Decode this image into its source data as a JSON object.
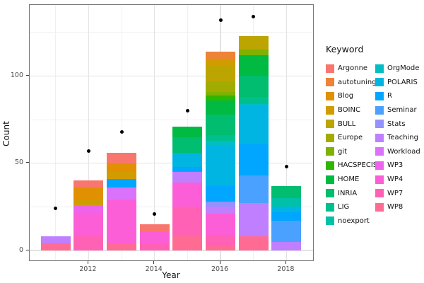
{
  "axes": {
    "x_label": "Year",
    "y_label": "Count",
    "x_ticks": [
      "2012",
      "2014",
      "2016",
      "2018"
    ],
    "y_ticks": [
      "0",
      "50",
      "100"
    ]
  },
  "legend": {
    "title": "Keyword"
  },
  "chart_data": {
    "type": "bar",
    "stacked": true,
    "title": "",
    "xlabel": "Year",
    "ylabel": "Count",
    "x": [
      2011,
      2012,
      2013,
      2014,
      2015,
      2016,
      2017,
      2018
    ],
    "x_tick_values": [
      2012,
      2014,
      2016,
      2018
    ],
    "y_tick_values": [
      0,
      50,
      100
    ],
    "y_minor_gridlines": [
      25,
      75,
      125
    ],
    "x_minor_gridlines": [
      2011,
      2013,
      2015,
      2017
    ],
    "ylim": [
      0,
      141
    ],
    "grid": true,
    "legend_title": "Keyword",
    "legend_position": "right",
    "stack_order_note": "first series drawn at top of stack, last at bottom",
    "series": [
      {
        "name": "Argonne",
        "color": "#F8766D",
        "values": [
          0,
          4,
          6,
          4,
          0,
          0,
          0,
          0
        ]
      },
      {
        "name": "autotuning",
        "color": "#EE8337",
        "values": [
          0,
          0,
          0,
          0,
          0,
          4,
          0,
          0
        ]
      },
      {
        "name": "Blog",
        "color": "#E09000",
        "values": [
          0,
          7,
          5,
          0,
          0,
          0,
          0,
          0
        ]
      },
      {
        "name": "BOINC",
        "color": "#D19C00",
        "values": [
          0,
          3,
          4,
          0,
          0,
          4,
          0,
          0
        ]
      },
      {
        "name": "BULL",
        "color": "#BCA500",
        "values": [
          0,
          0,
          0,
          0,
          0,
          9,
          8,
          0
        ]
      },
      {
        "name": "Europe",
        "color": "#A2AC00",
        "values": [
          0,
          0,
          0,
          0,
          0,
          6,
          0,
          0
        ]
      },
      {
        "name": "git",
        "color": "#7FB200",
        "values": [
          0,
          0,
          0,
          0,
          0,
          2,
          3,
          0
        ]
      },
      {
        "name": "HACSPECIS",
        "color": "#2FB600",
        "values": [
          0,
          0,
          0,
          0,
          0,
          3,
          0,
          0
        ]
      },
      {
        "name": "HOME",
        "color": "#00BA42",
        "values": [
          0,
          0,
          0,
          0,
          6,
          8,
          12,
          0
        ]
      },
      {
        "name": "INRIA",
        "color": "#00BD6F",
        "values": [
          0,
          0,
          0,
          0,
          9,
          12,
          12,
          7
        ]
      },
      {
        "name": "LIG",
        "color": "#00BF8F",
        "values": [
          0,
          0,
          0,
          0,
          0,
          3,
          4,
          0
        ]
      },
      {
        "name": "noexport",
        "color": "#00C0A8",
        "values": [
          0,
          0,
          0,
          0,
          0,
          0,
          0,
          5
        ]
      },
      {
        "name": "OrgMode",
        "color": "#00BEC4",
        "values": [
          0,
          0,
          0,
          0,
          0,
          3,
          1,
          0
        ]
      },
      {
        "name": "POLARIS",
        "color": "#00B5E2",
        "values": [
          0,
          0,
          0,
          0,
          8,
          23,
          22,
          3
        ]
      },
      {
        "name": "R",
        "color": "#00A6FF",
        "values": [
          0,
          0,
          5,
          0,
          3,
          9,
          18,
          5
        ]
      },
      {
        "name": "Seminar",
        "color": "#4BA1FF",
        "values": [
          0,
          0,
          0,
          0,
          0,
          0,
          16,
          12
        ]
      },
      {
        "name": "Stats",
        "color": "#9492FF",
        "values": [
          0,
          0,
          0,
          0,
          0,
          3,
          0,
          0
        ]
      },
      {
        "name": "Teaching",
        "color": "#BF7FFF",
        "values": [
          4,
          0,
          0,
          0,
          6,
          4,
          19,
          5
        ]
      },
      {
        "name": "Workload",
        "color": "#DB72FC",
        "values": [
          0,
          0,
          7,
          0,
          0,
          0,
          0,
          0
        ]
      },
      {
        "name": "WP3",
        "color": "#EF63EC",
        "values": [
          0,
          5,
          0,
          0,
          0,
          0,
          0,
          0
        ]
      },
      {
        "name": "WP4",
        "color": "#FC5ED8",
        "values": [
          0,
          13,
          25,
          7,
          14,
          12,
          0,
          0
        ]
      },
      {
        "name": "WP7",
        "color": "#FF61B4",
        "values": [
          0,
          8,
          0,
          4,
          17,
          6,
          0,
          0
        ]
      },
      {
        "name": "WP8",
        "color": "#FF6B92",
        "values": [
          4,
          0,
          4,
          0,
          8,
          3,
          8,
          0
        ]
      }
    ],
    "points_overlay": {
      "name": "totals-dots",
      "color": "#000000",
      "values": [
        24,
        57,
        68,
        21,
        80,
        132,
        134,
        48
      ]
    }
  }
}
